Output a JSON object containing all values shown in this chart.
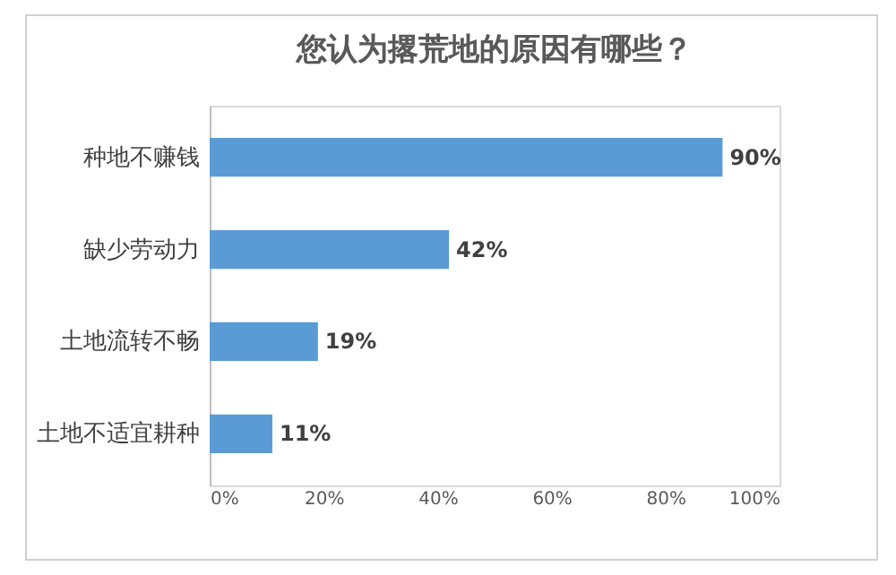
{
  "chart_data": {
    "type": "bar",
    "orientation": "horizontal",
    "title": "您认为撂荒地的原因有哪些？",
    "categories": [
      "种地不赚钱",
      "缺少劳动力",
      "土地流转不畅",
      "土地不适宜耕种"
    ],
    "values": [
      90,
      42,
      19,
      11
    ],
    "color": "#5b9bd5",
    "value_labels": [
      "90%",
      "42%",
      "19%",
      "11%"
    ],
    "xlim": [
      0,
      100
    ],
    "xticks": [
      {
        "value": 0,
        "label": "0%"
      },
      {
        "value": 20,
        "label": "20%"
      },
      {
        "value": 40,
        "label": "40%"
      },
      {
        "value": 60,
        "label": "60%"
      },
      {
        "value": 80,
        "label": "80%"
      },
      {
        "value": 100,
        "label": "100%"
      }
    ],
    "grid": false
  }
}
